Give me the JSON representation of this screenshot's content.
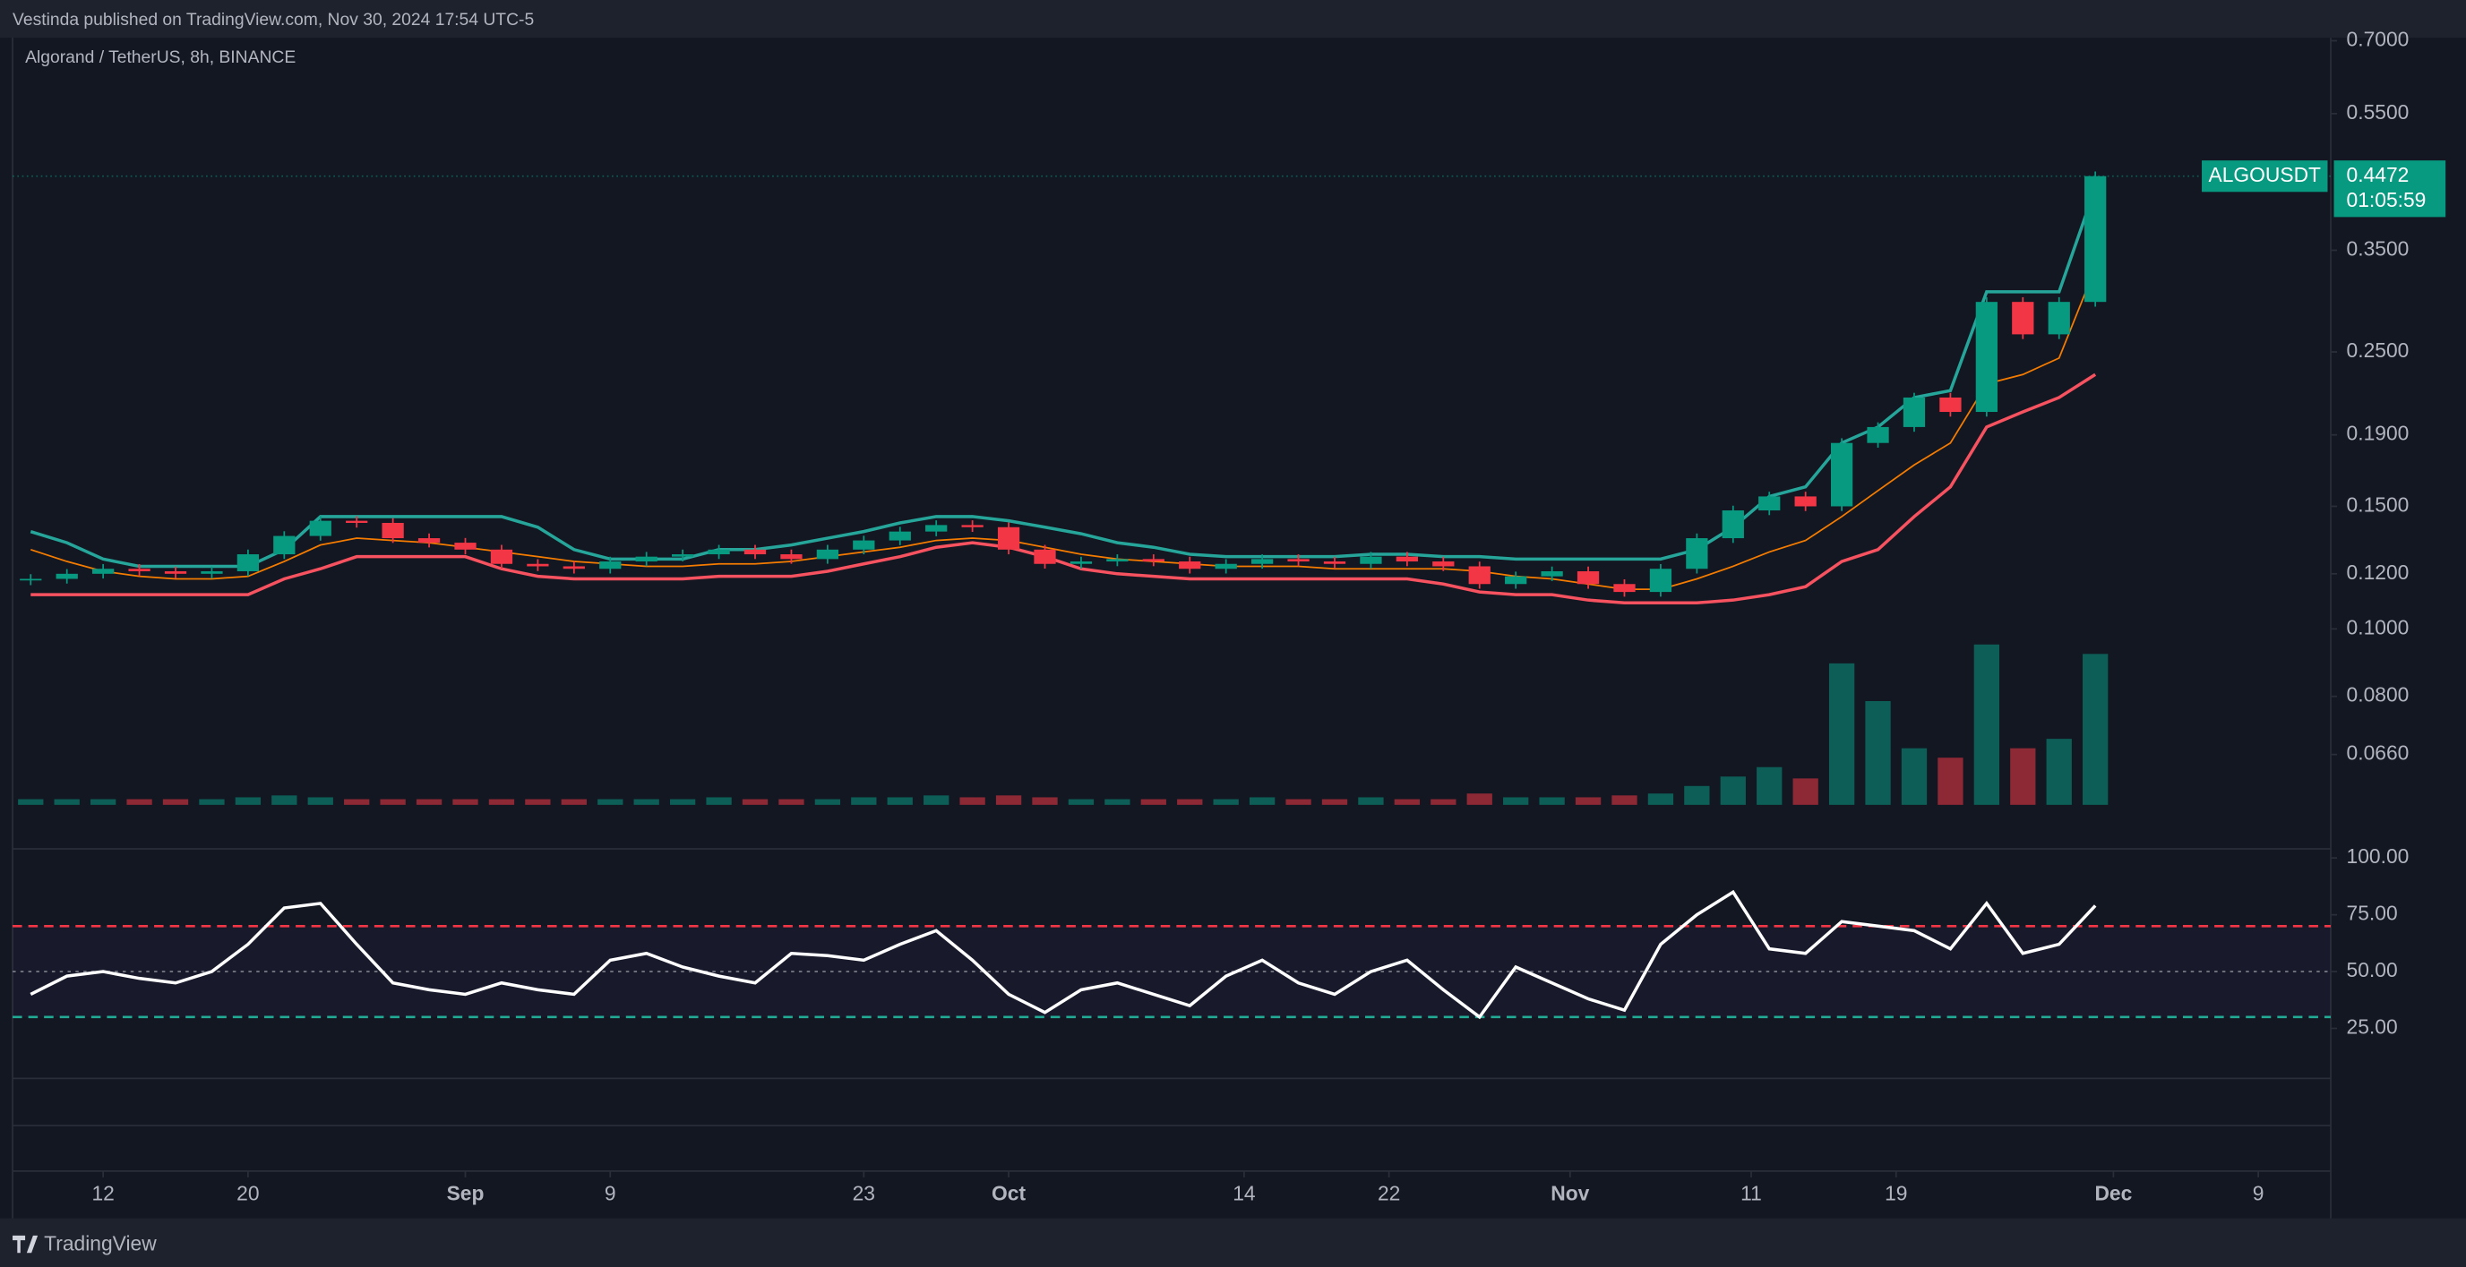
{
  "header": {
    "published": "Vestinda published on TradingView.com, Nov 30, 2024 17:54 UTC-5",
    "brand": "TradingView"
  },
  "chart_data": {
    "type": "candlestick",
    "title": "Algorand / TetherUS, 8h, BINANCE",
    "symbol": "ALGOUSDT",
    "countdown": "01:05:59",
    "log_scale": true,
    "up_color": "#089981",
    "down_color": "#f23645",
    "x": [
      "2024-08-08",
      "2024-08-10",
      "2024-08-12",
      "2024-08-14",
      "2024-08-16",
      "2024-08-18",
      "2024-08-20",
      "2024-08-22",
      "2024-08-24",
      "2024-08-26",
      "2024-08-28",
      "2024-08-30",
      "2024-09-01",
      "2024-09-03",
      "2024-09-05",
      "2024-09-07",
      "2024-09-09",
      "2024-09-11",
      "2024-09-13",
      "2024-09-15",
      "2024-09-17",
      "2024-09-19",
      "2024-09-21",
      "2024-09-23",
      "2024-09-25",
      "2024-09-27",
      "2024-09-29",
      "2024-10-01",
      "2024-10-03",
      "2024-10-05",
      "2024-10-07",
      "2024-10-09",
      "2024-10-11",
      "2024-10-13",
      "2024-10-15",
      "2024-10-17",
      "2024-10-19",
      "2024-10-21",
      "2024-10-23",
      "2024-10-25",
      "2024-10-27",
      "2024-10-29",
      "2024-10-31",
      "2024-11-02",
      "2024-11-04",
      "2024-11-06",
      "2024-11-08",
      "2024-11-10",
      "2024-11-12",
      "2024-11-14",
      "2024-11-16",
      "2024-11-18",
      "2024-11-20",
      "2024-11-22",
      "2024-11-24",
      "2024-11-26",
      "2024-11-28",
      "2024-11-30"
    ],
    "close": [
      0.118,
      0.12,
      0.122,
      0.121,
      0.12,
      0.121,
      0.128,
      0.136,
      0.143,
      0.142,
      0.135,
      0.133,
      0.13,
      0.124,
      0.123,
      0.122,
      0.125,
      0.127,
      0.128,
      0.13,
      0.128,
      0.126,
      0.13,
      0.134,
      0.138,
      0.141,
      0.14,
      0.13,
      0.124,
      0.125,
      0.126,
      0.125,
      0.122,
      0.124,
      0.126,
      0.125,
      0.124,
      0.127,
      0.125,
      0.123,
      0.116,
      0.119,
      0.121,
      0.116,
      0.113,
      0.122,
      0.135,
      0.148,
      0.155,
      0.15,
      0.185,
      0.195,
      0.215,
      0.205,
      0.295,
      0.265,
      0.295,
      0.4472
    ],
    "bands": [
      {
        "color": "#26a69a",
        "values": [
          0.138,
          0.133,
          0.126,
          0.123,
          0.123,
          0.123,
          0.123,
          0.13,
          0.145,
          0.145,
          0.145,
          0.145,
          0.145,
          0.145,
          0.14,
          0.13,
          0.126,
          0.126,
          0.126,
          0.13,
          0.13,
          0.132,
          0.135,
          0.138,
          0.142,
          0.145,
          0.145,
          0.143,
          0.14,
          0.137,
          0.133,
          0.131,
          0.128,
          0.127,
          0.127,
          0.127,
          0.127,
          0.128,
          0.128,
          0.127,
          0.127,
          0.126,
          0.126,
          0.126,
          0.126,
          0.126,
          0.13,
          0.14,
          0.155,
          0.16,
          0.185,
          0.195,
          0.215,
          0.22,
          0.305,
          0.305,
          0.305,
          0.43
        ]
      },
      {
        "color": "#f57c00",
        "values": [
          0.13,
          0.125,
          0.121,
          0.119,
          0.118,
          0.118,
          0.119,
          0.125,
          0.132,
          0.135,
          0.134,
          0.133,
          0.131,
          0.129,
          0.127,
          0.125,
          0.124,
          0.123,
          0.123,
          0.124,
          0.124,
          0.125,
          0.127,
          0.129,
          0.131,
          0.134,
          0.135,
          0.134,
          0.131,
          0.128,
          0.126,
          0.125,
          0.124,
          0.123,
          0.123,
          0.123,
          0.122,
          0.122,
          0.122,
          0.122,
          0.121,
          0.119,
          0.118,
          0.116,
          0.114,
          0.114,
          0.118,
          0.123,
          0.129,
          0.134,
          0.145,
          0.158,
          0.172,
          0.185,
          0.225,
          0.232,
          0.245,
          0.33
        ]
      },
      {
        "color": "#f7525f",
        "values": [
          0.112,
          0.112,
          0.112,
          0.112,
          0.112,
          0.112,
          0.112,
          0.118,
          0.122,
          0.127,
          0.127,
          0.127,
          0.127,
          0.122,
          0.119,
          0.118,
          0.118,
          0.118,
          0.118,
          0.119,
          0.119,
          0.119,
          0.121,
          0.124,
          0.127,
          0.131,
          0.133,
          0.131,
          0.127,
          0.122,
          0.12,
          0.119,
          0.118,
          0.118,
          0.118,
          0.118,
          0.118,
          0.118,
          0.118,
          0.116,
          0.113,
          0.112,
          0.112,
          0.11,
          0.109,
          0.109,
          0.109,
          0.11,
          0.112,
          0.115,
          0.125,
          0.13,
          0.145,
          0.16,
          0.195,
          0.205,
          0.215,
          0.232
        ]
      }
    ],
    "ylim": [
      0.0483,
      0.707
    ],
    "yticks": [
      {
        "value": 0.7,
        "label": "0.7000"
      },
      {
        "value": 0.55,
        "label": "0.5500"
      },
      {
        "value": 0.35,
        "label": "0.3500"
      },
      {
        "value": 0.25,
        "label": "0.2500"
      },
      {
        "value": 0.19,
        "label": "0.1900"
      },
      {
        "value": 0.15,
        "label": "0.1500"
      },
      {
        "value": 0.12,
        "label": "0.1200"
      },
      {
        "value": 0.1,
        "label": "0.1000"
      },
      {
        "value": 0.08,
        "label": "0.0800"
      },
      {
        "value": 0.066,
        "label": "0.0660"
      }
    ],
    "xlim": [
      "2024-08-07",
      "2024-12-13"
    ],
    "xticks": [
      {
        "value": "2024-08-12",
        "label": "12"
      },
      {
        "value": "2024-08-20",
        "label": "20"
      },
      {
        "value": "2024-09-01",
        "label": "Sep"
      },
      {
        "value": "2024-09-09",
        "label": "9"
      },
      {
        "value": "2024-09-23",
        "label": "23"
      },
      {
        "value": "2024-10-01",
        "label": "Oct"
      },
      {
        "value": "2024-10-14",
        "label": "14"
      },
      {
        "value": "2024-10-22",
        "label": "22"
      },
      {
        "value": "2024-11-01",
        "label": "Nov"
      },
      {
        "value": "2024-11-11",
        "label": "11"
      },
      {
        "value": "2024-11-19",
        "label": "19"
      },
      {
        "value": "2024-12-01",
        "label": "Dec"
      },
      {
        "value": "2024-12-09",
        "label": "9"
      }
    ],
    "volume": {
      "ylim": [
        0,
        100
      ],
      "values": [
        3,
        3,
        3,
        3,
        3,
        3,
        4,
        5,
        4,
        3,
        3,
        3,
        3,
        3,
        3,
        3,
        3,
        3,
        3,
        4,
        3,
        3,
        3,
        4,
        4,
        5,
        4,
        5,
        4,
        3,
        3,
        3,
        3,
        3,
        4,
        3,
        3,
        4,
        3,
        3,
        6,
        4,
        4,
        4,
        5,
        6,
        10,
        15,
        20,
        14,
        75,
        55,
        30,
        25,
        85,
        30,
        35,
        80
      ]
    },
    "rsi": {
      "color": "#ffffff",
      "values": [
        40,
        48,
        50,
        47,
        45,
        50,
        62,
        78,
        80,
        62,
        45,
        42,
        40,
        45,
        42,
        40,
        55,
        58,
        52,
        48,
        45,
        58,
        57,
        55,
        62,
        68,
        55,
        40,
        32,
        42,
        45,
        40,
        35,
        48,
        55,
        45,
        40,
        50,
        55,
        42,
        30,
        52,
        45,
        38,
        33,
        62,
        75,
        85,
        60,
        58,
        72,
        70,
        68,
        60,
        80,
        58,
        62,
        79
      ],
      "ylim": [
        3,
        104
      ],
      "yticks": [
        {
          "value": 100,
          "label": "100.00"
        },
        {
          "value": 75,
          "label": "75.00"
        },
        {
          "value": 50,
          "label": "50.00"
        },
        {
          "value": 25,
          "label": "25.00"
        }
      ],
      "levels": [
        {
          "value": 70,
          "color": "#f23645"
        },
        {
          "value": 50,
          "color": "#787b86"
        },
        {
          "value": 30,
          "color": "#22ab94"
        }
      ]
    }
  }
}
